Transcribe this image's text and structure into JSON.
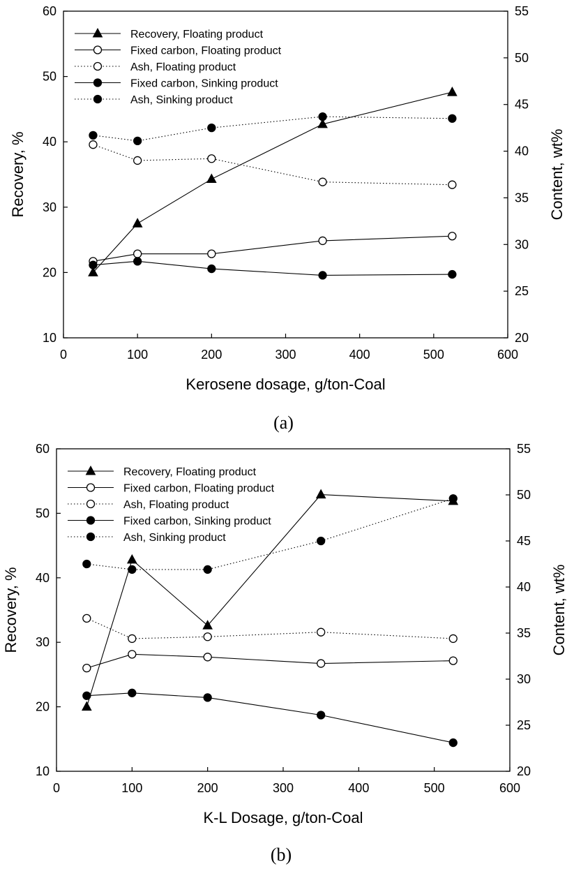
{
  "chart_data": [
    {
      "type": "line",
      "caption": "(a)",
      "xlabel": "Kerosene dosage, g/ton-Coal",
      "ylabel": "Recovery, %",
      "y2label": "Content, wt%",
      "xlim": [
        0,
        600
      ],
      "ylim": [
        10,
        60
      ],
      "y2lim": [
        20,
        55
      ],
      "xticks": [
        "0",
        "100",
        "200",
        "300",
        "400",
        "500",
        "600"
      ],
      "yticks": [
        "10",
        "20",
        "30",
        "40",
        "50",
        "60"
      ],
      "y2ticks": [
        "20",
        "25",
        "30",
        "35",
        "40",
        "45",
        "50",
        "55"
      ],
      "grid": false,
      "legend_position": "top-left",
      "x": [
        40,
        100,
        200,
        350,
        525
      ],
      "series": [
        {
          "name": "Recovery, Floating product",
          "axis": "left",
          "marker": "triangle-filled",
          "line": "solid",
          "values": [
            20.0,
            27.5,
            34.3,
            42.7,
            47.6
          ]
        },
        {
          "name": "Fixed carbon, Floating product",
          "axis": "right",
          "marker": "circle-open",
          "line": "solid",
          "values": [
            28.2,
            29.0,
            29.0,
            30.4,
            30.9
          ]
        },
        {
          "name": "Ash, Floating product",
          "axis": "right",
          "marker": "circle-open",
          "line": "dotted",
          "values": [
            40.7,
            39.0,
            39.2,
            36.7,
            36.4
          ]
        },
        {
          "name": "Fixed carbon, Sinking product",
          "axis": "right",
          "marker": "circle-filled",
          "line": "solid",
          "values": [
            27.8,
            28.2,
            27.4,
            26.7,
            26.8
          ]
        },
        {
          "name": "Ash, Sinking product",
          "axis": "right",
          "marker": "circle-filled",
          "line": "dotted",
          "values": [
            41.7,
            41.1,
            42.5,
            43.7,
            43.5
          ]
        }
      ]
    },
    {
      "type": "line",
      "caption": "(b)",
      "xlabel": "K-L Dosage, g/ton-Coal",
      "ylabel": "Recovery, %",
      "y2label": "Content, wt%",
      "xlim": [
        0,
        600
      ],
      "ylim": [
        10,
        60
      ],
      "y2lim": [
        20,
        55
      ],
      "xticks": [
        "0",
        "100",
        "200",
        "300",
        "400",
        "500",
        "600"
      ],
      "yticks": [
        "10",
        "20",
        "30",
        "40",
        "50",
        "60"
      ],
      "y2ticks": [
        "20",
        "25",
        "30",
        "35",
        "40",
        "45",
        "50",
        "55"
      ],
      "grid": false,
      "legend_position": "top-left",
      "x": [
        40,
        100,
        200,
        350,
        525
      ],
      "series": [
        {
          "name": "Recovery, Floating product",
          "axis": "left",
          "marker": "triangle-filled",
          "line": "solid",
          "values": [
            20.0,
            42.8,
            32.6,
            52.9,
            51.9
          ]
        },
        {
          "name": "Fixed carbon, Floating product",
          "axis": "right",
          "marker": "circle-open",
          "line": "solid",
          "values": [
            31.2,
            32.7,
            32.4,
            31.7,
            32.0
          ]
        },
        {
          "name": "Ash, Floating product",
          "axis": "right",
          "marker": "circle-open",
          "line": "dotted",
          "values": [
            36.6,
            34.4,
            34.6,
            35.1,
            34.4
          ]
        },
        {
          "name": "Fixed carbon, Sinking product",
          "axis": "right",
          "marker": "circle-filled",
          "line": "solid",
          "values": [
            28.2,
            28.5,
            28.0,
            26.1,
            23.1
          ]
        },
        {
          "name": "Ash, Sinking product",
          "axis": "right",
          "marker": "circle-filled",
          "line": "dotted",
          "values": [
            42.5,
            41.9,
            41.9,
            45.0,
            49.6
          ]
        }
      ]
    }
  ]
}
